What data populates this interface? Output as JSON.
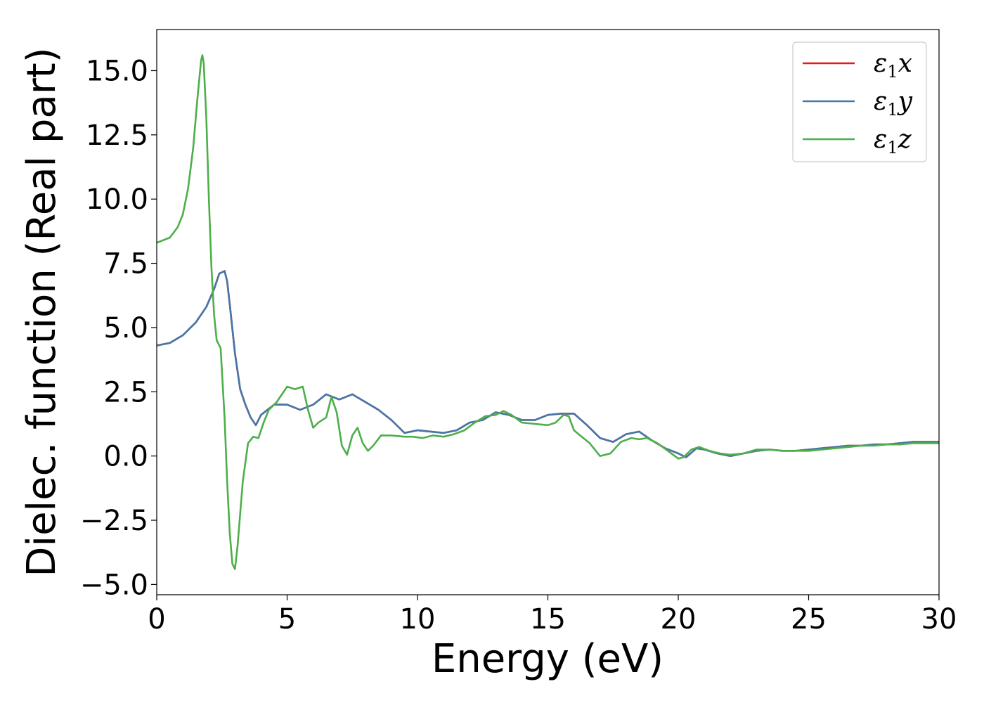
{
  "chart_data": {
    "type": "line",
    "title": "",
    "xlabel": "Energy (eV)",
    "ylabel": "Dielec. function (Real part)",
    "xlim": [
      0,
      30
    ],
    "ylim": [
      -5.4,
      16.6
    ],
    "xticks": [
      0,
      5,
      10,
      15,
      20,
      25,
      30
    ],
    "xtick_labels": [
      "0",
      "5",
      "10",
      "15",
      "20",
      "25",
      "30"
    ],
    "yticks": [
      -5.0,
      -2.5,
      0.0,
      2.5,
      5.0,
      7.5,
      10.0,
      12.5,
      15.0
    ],
    "ytick_labels": [
      "−5.0",
      "−2.5",
      "0.0",
      "2.5",
      "5.0",
      "7.5",
      "10.0",
      "12.5",
      "15.0"
    ],
    "grid": false,
    "legend_position": "top-right",
    "series": [
      {
        "name": "ε₁x",
        "legend": {
          "main": "ε",
          "sub": "1",
          "suffix": "x"
        },
        "color": "#e41a1c",
        "x": [
          0,
          0.5,
          1.0,
          1.5,
          1.9,
          2.2,
          2.4,
          2.6,
          2.7,
          2.8,
          3.0,
          3.2,
          3.4,
          3.6,
          3.8,
          4.0,
          4.5,
          5.0,
          5.5,
          6.0,
          6.5,
          7.0,
          7.5,
          8.0,
          8.5,
          9.0,
          9.5,
          10.0,
          10.5,
          11.0,
          11.5,
          12.0,
          12.5,
          13.0,
          13.5,
          14.0,
          14.5,
          15.0,
          15.5,
          16.0,
          16.5,
          17.0,
          17.5,
          18.0,
          18.5,
          19.0,
          19.5,
          20.0,
          20.3,
          20.7,
          21.0,
          21.5,
          22.0,
          22.5,
          23.0,
          23.5,
          24.0,
          24.5,
          25.0,
          25.5,
          26.0,
          26.5,
          27.0,
          27.5,
          28.0,
          28.5,
          29.0,
          29.5,
          30.0
        ],
        "y": [
          4.3,
          4.4,
          4.7,
          5.2,
          5.8,
          6.5,
          7.1,
          7.2,
          6.8,
          5.9,
          4.0,
          2.6,
          2.0,
          1.5,
          1.2,
          1.6,
          2.0,
          2.0,
          1.8,
          2.0,
          2.4,
          2.2,
          2.4,
          2.1,
          1.8,
          1.4,
          0.9,
          1.0,
          0.95,
          0.9,
          1.0,
          1.3,
          1.4,
          1.7,
          1.6,
          1.4,
          1.4,
          1.6,
          1.65,
          1.65,
          1.2,
          0.7,
          0.55,
          0.85,
          0.95,
          0.6,
          0.3,
          0.1,
          -0.05,
          0.3,
          0.25,
          0.1,
          0.0,
          0.1,
          0.2,
          0.25,
          0.2,
          0.2,
          0.25,
          0.3,
          0.35,
          0.4,
          0.4,
          0.45,
          0.45,
          0.5,
          0.55,
          0.55,
          0.55
        ]
      },
      {
        "name": "ε₁y",
        "legend": {
          "main": "ε",
          "sub": "1",
          "suffix": "y"
        },
        "color": "#4477aa",
        "x": [
          0,
          0.5,
          1.0,
          1.5,
          1.9,
          2.2,
          2.4,
          2.6,
          2.7,
          2.8,
          3.0,
          3.2,
          3.4,
          3.6,
          3.8,
          4.0,
          4.5,
          5.0,
          5.5,
          6.0,
          6.5,
          7.0,
          7.5,
          8.0,
          8.5,
          9.0,
          9.5,
          10.0,
          10.5,
          11.0,
          11.5,
          12.0,
          12.5,
          13.0,
          13.5,
          14.0,
          14.5,
          15.0,
          15.5,
          16.0,
          16.5,
          17.0,
          17.5,
          18.0,
          18.5,
          19.0,
          19.5,
          20.0,
          20.3,
          20.7,
          21.0,
          21.5,
          22.0,
          22.5,
          23.0,
          23.5,
          24.0,
          24.5,
          25.0,
          25.5,
          26.0,
          26.5,
          27.0,
          27.5,
          28.0,
          28.5,
          29.0,
          29.5,
          30.0
        ],
        "y": [
          4.3,
          4.4,
          4.7,
          5.2,
          5.8,
          6.5,
          7.1,
          7.2,
          6.8,
          5.9,
          4.0,
          2.6,
          2.0,
          1.5,
          1.2,
          1.6,
          2.0,
          2.0,
          1.8,
          2.0,
          2.4,
          2.2,
          2.4,
          2.1,
          1.8,
          1.4,
          0.9,
          1.0,
          0.95,
          0.9,
          1.0,
          1.3,
          1.4,
          1.7,
          1.6,
          1.4,
          1.4,
          1.6,
          1.65,
          1.65,
          1.2,
          0.7,
          0.55,
          0.85,
          0.95,
          0.6,
          0.3,
          0.1,
          -0.05,
          0.3,
          0.25,
          0.1,
          0.0,
          0.1,
          0.2,
          0.25,
          0.2,
          0.2,
          0.25,
          0.3,
          0.35,
          0.4,
          0.4,
          0.45,
          0.45,
          0.5,
          0.55,
          0.55,
          0.55
        ]
      },
      {
        "name": "ε₁z",
        "legend": {
          "main": "ε",
          "sub": "1",
          "suffix": "z"
        },
        "color": "#4daf4a",
        "x": [
          0,
          0.5,
          0.8,
          1.0,
          1.2,
          1.4,
          1.55,
          1.7,
          1.75,
          1.8,
          1.9,
          2.0,
          2.1,
          2.2,
          2.3,
          2.45,
          2.6,
          2.7,
          2.8,
          2.9,
          3.0,
          3.1,
          3.3,
          3.5,
          3.7,
          3.9,
          4.1,
          4.3,
          4.6,
          5.0,
          5.3,
          5.6,
          5.8,
          6.0,
          6.2,
          6.5,
          6.7,
          6.9,
          7.1,
          7.3,
          7.5,
          7.7,
          7.9,
          8.1,
          8.3,
          8.6,
          9.0,
          9.5,
          9.8,
          10.2,
          10.6,
          11.0,
          11.4,
          11.8,
          12.2,
          12.6,
          13.0,
          13.3,
          13.6,
          14.0,
          14.5,
          15.0,
          15.3,
          15.6,
          15.8,
          16.0,
          16.3,
          16.6,
          17.0,
          17.4,
          17.8,
          18.2,
          18.5,
          18.8,
          19.2,
          19.6,
          20.0,
          20.2,
          20.5,
          20.8,
          21.2,
          21.6,
          22.0,
          22.5,
          23.0,
          23.5,
          24.0,
          24.5,
          25.0,
          25.5,
          26.0,
          26.5,
          27.0,
          27.5,
          28.0,
          28.5,
          29.0,
          29.5,
          30.0
        ],
        "y": [
          8.3,
          8.5,
          8.9,
          9.4,
          10.4,
          12.0,
          13.8,
          15.4,
          15.6,
          15.3,
          13.2,
          10.0,
          7.3,
          5.5,
          4.5,
          4.2,
          1.5,
          -1.0,
          -3.0,
          -4.2,
          -4.4,
          -3.5,
          -1.0,
          0.5,
          0.75,
          0.7,
          1.3,
          1.8,
          2.1,
          2.7,
          2.6,
          2.7,
          1.8,
          1.1,
          1.3,
          1.5,
          2.3,
          1.7,
          0.4,
          0.05,
          0.8,
          1.1,
          0.5,
          0.2,
          0.4,
          0.8,
          0.8,
          0.75,
          0.75,
          0.7,
          0.8,
          0.75,
          0.85,
          1.0,
          1.3,
          1.55,
          1.6,
          1.75,
          1.6,
          1.3,
          1.25,
          1.2,
          1.3,
          1.6,
          1.55,
          1.0,
          0.75,
          0.5,
          0.0,
          0.1,
          0.55,
          0.7,
          0.65,
          0.7,
          0.5,
          0.2,
          -0.1,
          -0.05,
          0.25,
          0.35,
          0.2,
          0.1,
          0.05,
          0.1,
          0.25,
          0.25,
          0.2,
          0.2,
          0.2,
          0.25,
          0.3,
          0.35,
          0.4,
          0.4,
          0.45,
          0.45,
          0.5,
          0.5,
          0.5
        ]
      }
    ]
  }
}
